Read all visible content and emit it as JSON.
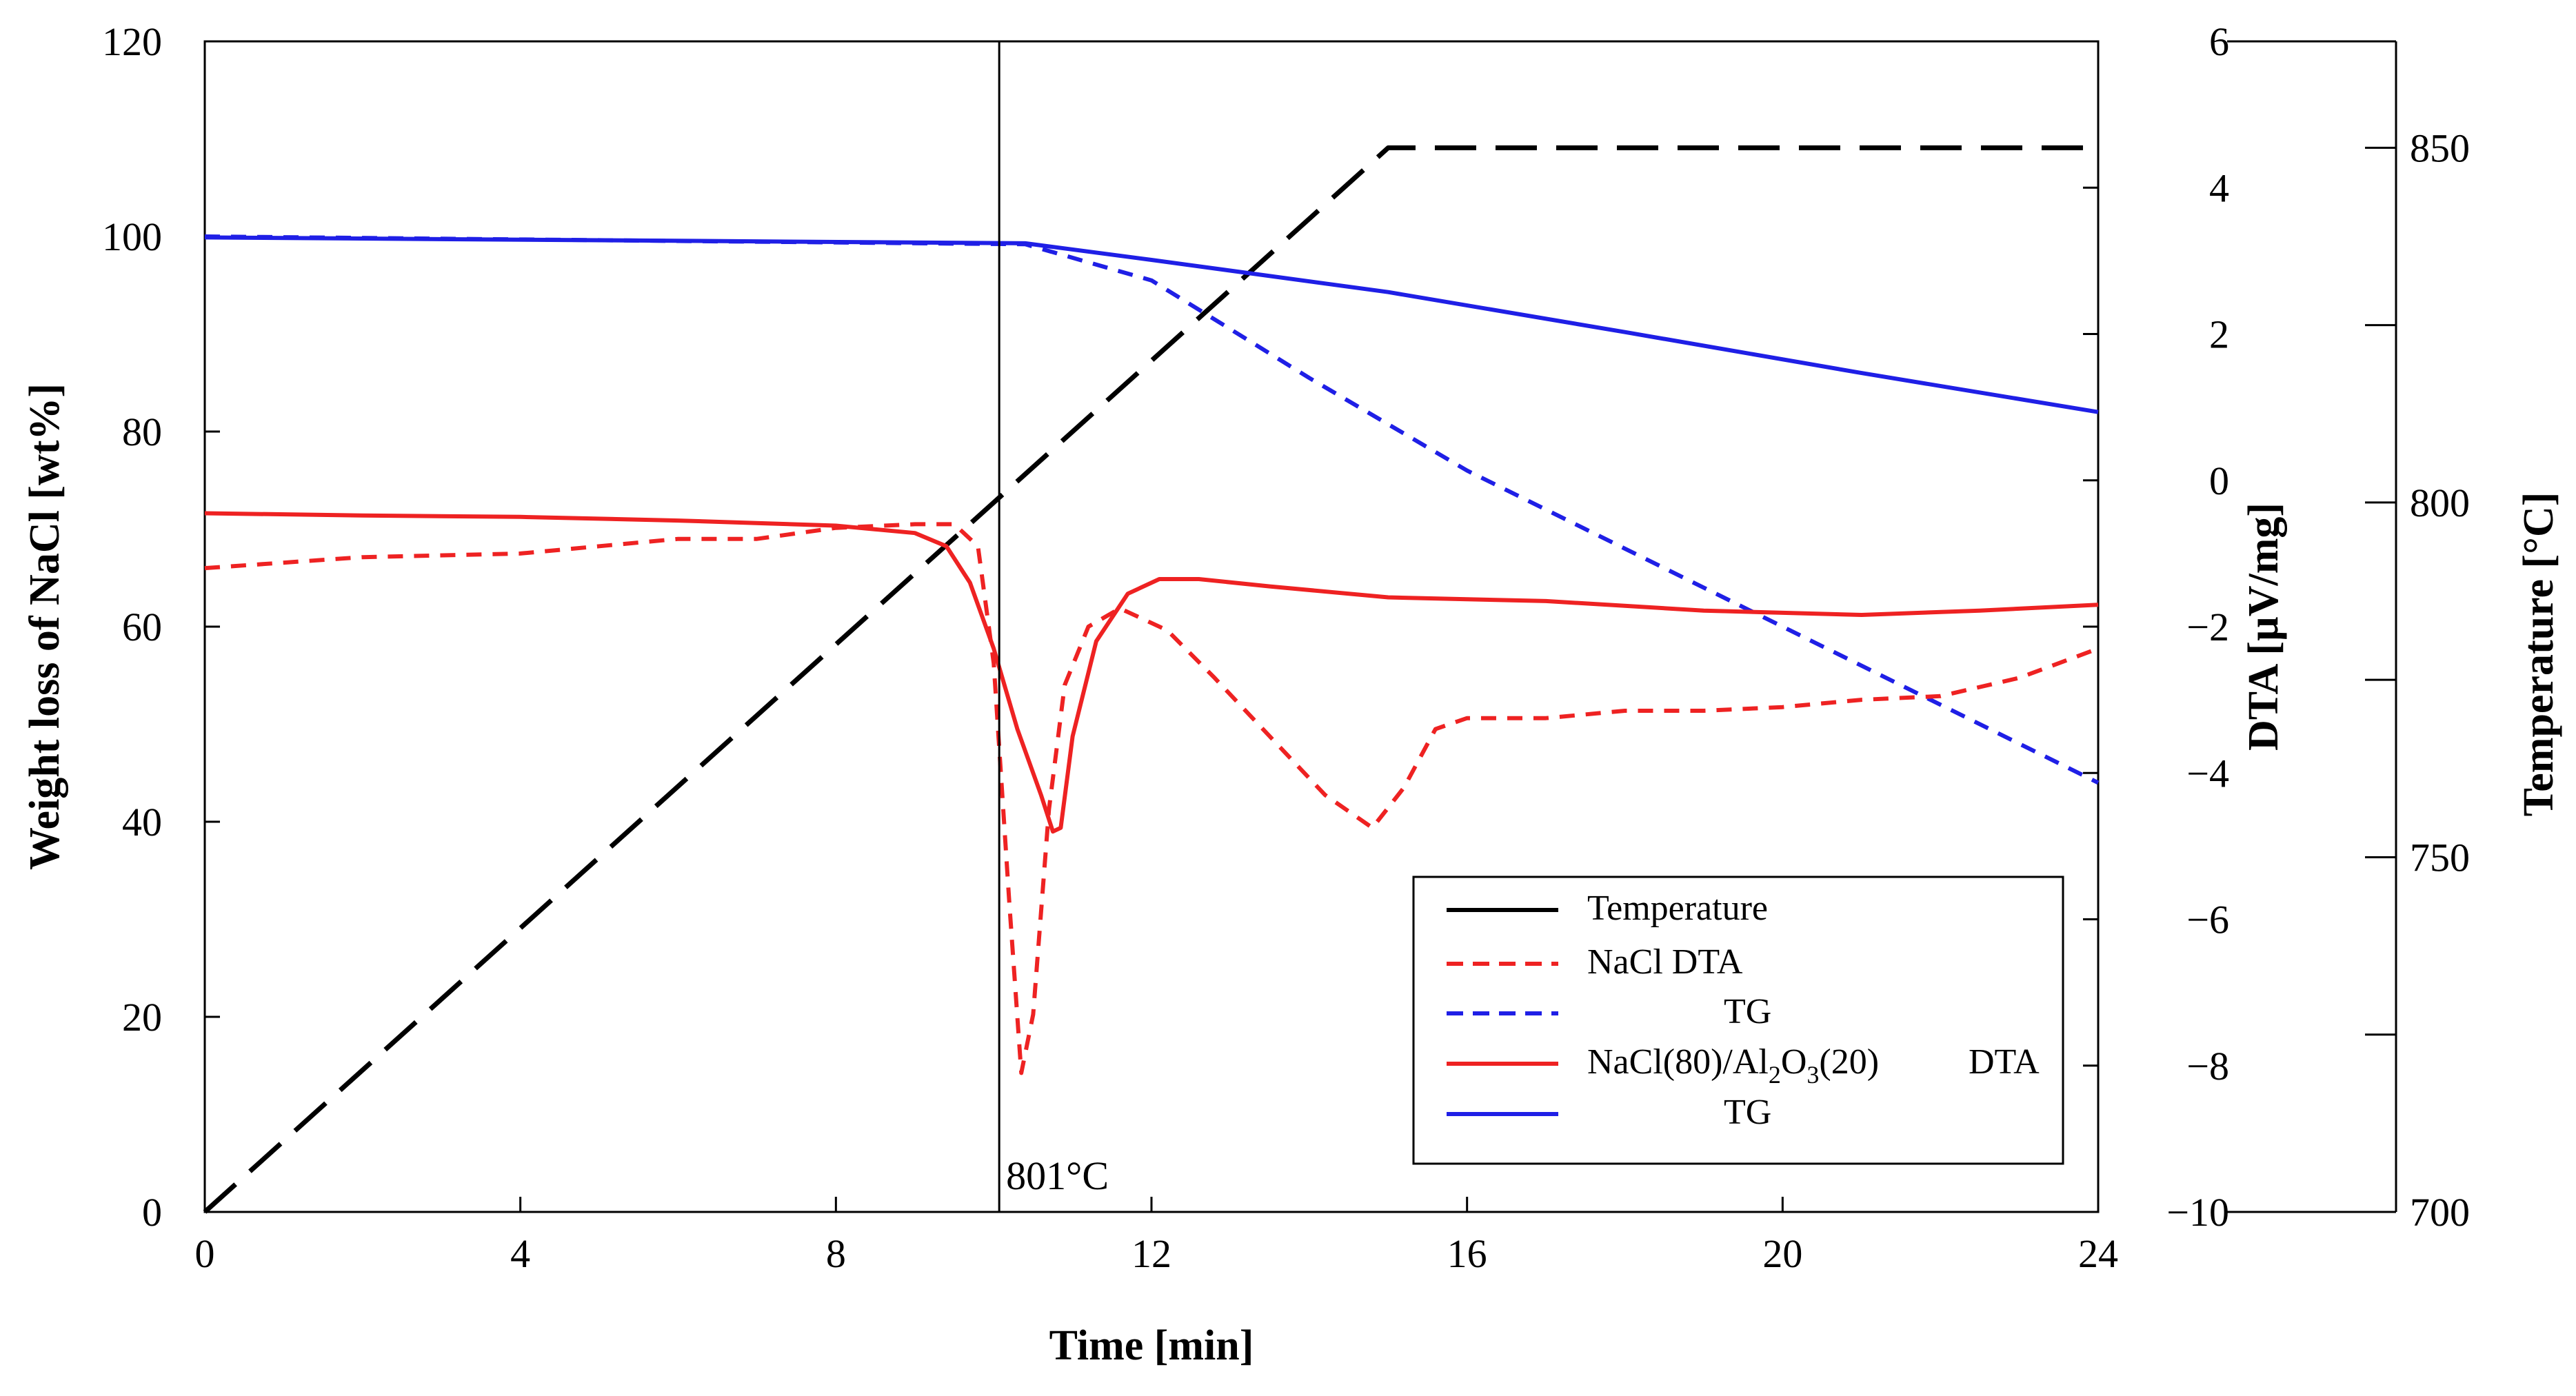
{
  "chart_data": {
    "type": "line",
    "title": "",
    "xlabel": "Time  [min]",
    "ylabel": "Weight loss of NaCl [wt%]",
    "ylabel_dta": "DTA  [µV/mg]",
    "ylabel_temp": "Temperature  [°C]",
    "xlim": [
      0,
      24
    ],
    "ylim": [
      0,
      120
    ],
    "ylim_dta": [
      -10,
      6
    ],
    "ylim_temp": [
      700,
      865
    ],
    "x_ticks": [
      0,
      4,
      8,
      12,
      16,
      20,
      24
    ],
    "y_ticks": [
      0,
      20,
      40,
      60,
      80,
      100,
      120
    ],
    "dta_ticks": [
      {
        "v": -10,
        "label": "−10"
      },
      {
        "v": -8,
        "label": "−8"
      },
      {
        "v": -6,
        "label": "−6"
      },
      {
        "v": -4,
        "label": "−4"
      },
      {
        "v": -2,
        "label": "−2"
      },
      {
        "v": 0,
        "label": "0"
      },
      {
        "v": 2,
        "label": "2"
      },
      {
        "v": 4,
        "label": "4"
      },
      {
        "v": 6,
        "label": "6"
      }
    ],
    "temp_ticks": [
      {
        "v": 700,
        "label": "700"
      },
      {
        "v": 725,
        "label": ""
      },
      {
        "v": 750,
        "label": "750"
      },
      {
        "v": 775,
        "label": ""
      },
      {
        "v": 800,
        "label": "800"
      },
      {
        "v": 825,
        "label": ""
      },
      {
        "v": 850,
        "label": "850"
      }
    ],
    "annotation": {
      "x": 10.07,
      "label": "801°C"
    },
    "legend_position": "bottom-right",
    "legend": [
      {
        "series": "temperature",
        "parts": [
          "Temperature"
        ]
      },
      {
        "series": "nacl_dta",
        "parts": [
          "NaCl   DTA"
        ]
      },
      {
        "series": "nacl_tg",
        "parts": [
          "TG"
        ]
      },
      {
        "series": "comp_dta",
        "parts": [
          "NaCl(80)/Al",
          "2",
          "O",
          "3",
          "(20)",
          "DTA"
        ]
      },
      {
        "series": "comp_tg",
        "parts": [
          "TG"
        ]
      }
    ],
    "series": [
      {
        "id": "temperature",
        "name": "Temperature",
        "axis": "temp",
        "color": "#000000",
        "dash": "long",
        "x": [
          0,
          15,
          24
        ],
        "y": [
          700,
          850,
          850
        ]
      },
      {
        "id": "nacl_tg",
        "name": "NaCl TG",
        "axis": "weight",
        "color": "#1f1fe6",
        "dash": "short",
        "x": [
          0,
          10.4,
          12,
          14,
          16,
          18,
          20,
          22,
          24
        ],
        "y": [
          100,
          99.2,
          95.5,
          85.5,
          76,
          68,
          60,
          52,
          44
        ]
      },
      {
        "id": "comp_tg",
        "name": "NaCl(80)/Al2O3(20) TG",
        "axis": "weight",
        "color": "#1f1fe6",
        "dash": "solid",
        "x": [
          0,
          10.4,
          12,
          15,
          18,
          21,
          24
        ],
        "y": [
          99.9,
          99.3,
          97.6,
          94.3,
          90.2,
          86,
          82
        ]
      },
      {
        "id": "nacl_dta",
        "name": "NaCl DTA",
        "axis": "dta",
        "color": "#ee2222",
        "dash": "short",
        "x": [
          0,
          2,
          4,
          5,
          6,
          7,
          8,
          9,
          9.5,
          9.8,
          10.0,
          10.2,
          10.35,
          10.5,
          10.7,
          10.9,
          11.2,
          11.6,
          12.2,
          12.8,
          13.5,
          14.2,
          14.8,
          15.2,
          15.6,
          16,
          17,
          18,
          19,
          20,
          21,
          22,
          23,
          24
        ],
        "y": [
          -1.2,
          -1.05,
          -1.0,
          -0.9,
          -0.8,
          -0.8,
          -0.65,
          -0.6,
          -0.6,
          -0.9,
          -2.5,
          -5.8,
          -8.1,
          -7.3,
          -4.5,
          -2.8,
          -2.0,
          -1.75,
          -2.05,
          -2.7,
          -3.5,
          -4.3,
          -4.75,
          -4.2,
          -3.4,
          -3.25,
          -3.25,
          -3.15,
          -3.15,
          -3.1,
          -3.0,
          -2.95,
          -2.7,
          -2.3
        ]
      },
      {
        "id": "comp_dta",
        "name": "NaCl(80)/Al2O3(20) DTA",
        "axis": "dta",
        "color": "#ee2222",
        "dash": "solid",
        "x": [
          0,
          2,
          4,
          6,
          8,
          9,
          9.4,
          9.7,
          10.0,
          10.3,
          10.6,
          10.75,
          10.85,
          11.0,
          11.3,
          11.7,
          12.1,
          12.6,
          13.5,
          15,
          17,
          19,
          21,
          22.5,
          24
        ],
        "y": [
          -0.45,
          -0.48,
          -0.5,
          -0.55,
          -0.62,
          -0.72,
          -0.9,
          -1.4,
          -2.3,
          -3.4,
          -4.3,
          -4.8,
          -4.75,
          -3.5,
          -2.2,
          -1.55,
          -1.35,
          -1.35,
          -1.45,
          -1.6,
          -1.65,
          -1.78,
          -1.84,
          -1.78,
          -1.7
        ]
      }
    ]
  }
}
